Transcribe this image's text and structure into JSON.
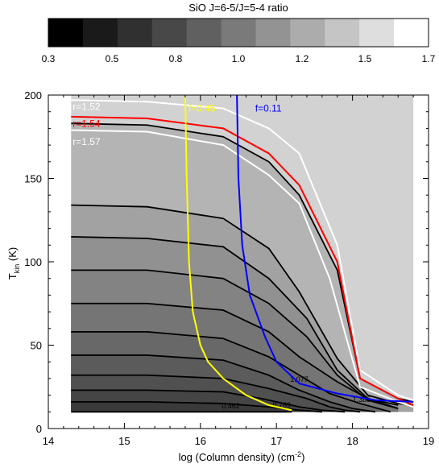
{
  "colorbar": {
    "title": "SiO J=6-5/J=5-4 ratio",
    "ticks": [
      "0.3",
      "0.5",
      "0.8",
      "1.0",
      "1.2",
      "1.5",
      "1.7"
    ],
    "shades": [
      "#000000",
      "#1a1a1a",
      "#303030",
      "#484848",
      "#606060",
      "#7a7a7a",
      "#939393",
      "#acacac",
      "#c5c5c5",
      "#dedede",
      "#ffffff"
    ]
  },
  "chart_data": {
    "type": "contour",
    "xlabel": "log (Column density) (cm",
    "xlabel_sup": "-2",
    "xlabel_end": ")",
    "ylabel_main": "T",
    "ylabel_sub": "kin",
    "ylabel_unit": " (K)",
    "xlim": [
      14,
      19
    ],
    "ylim": [
      0,
      200
    ],
    "x_ticks": [
      "14",
      "15",
      "16",
      "17",
      "18",
      "19"
    ],
    "y_ticks": [
      "0",
      "50",
      "100",
      "150",
      "200"
    ],
    "x_tick_values": [
      14,
      15,
      16,
      17,
      18,
      19
    ],
    "y_tick_values": [
      0,
      50,
      100,
      150,
      200
    ],
    "grid_x": [
      14.3,
      15.3,
      16.3,
      17.3,
      17.6,
      18.2,
      18.8
    ],
    "grid_y": [
      10,
      13,
      17,
      24,
      30,
      40,
      52,
      64,
      80,
      100,
      125,
      150,
      185,
      198
    ],
    "background_color": "#d2d2d2",
    "level_fills": [
      "#303030",
      "#3a3a3a",
      "#454545",
      "#505050",
      "#5b5b5b",
      "#686868",
      "#757575",
      "#838383",
      "#919191",
      "#a2a2a2",
      "#b4b4b4",
      "#c3c3c3"
    ],
    "black_contours": [
      {
        "x": [
          14.3,
          15.3,
          16.3,
          16.8,
          17.2
        ],
        "y": [
          10,
          10,
          10,
          10,
          10
        ],
        "label": "0.462",
        "label_x": 16.28,
        "label_y": 12
      },
      {
        "x": [
          14.3,
          15.3,
          16.3,
          16.9,
          17.3,
          17.6
        ],
        "y": [
          16,
          16,
          15,
          13,
          11,
          10
        ]
      },
      {
        "x": [
          14.3,
          15.3,
          16.3,
          16.8,
          17.3,
          17.6,
          17.9
        ],
        "y": [
          23,
          23,
          22,
          18,
          13,
          11,
          10
        ],
        "label": "0.769",
        "label_x": 16.95,
        "label_y": 12.5
      },
      {
        "x": [
          14.3,
          15.3,
          16.3,
          16.9,
          17.4,
          17.7,
          17.9,
          18.1
        ],
        "y": [
          32,
          32,
          30,
          24,
          18,
          13,
          11,
          10
        ]
      },
      {
        "x": [
          14.3,
          15.3,
          16.3,
          16.9,
          17.3,
          17.7,
          18.0,
          18.3
        ],
        "y": [
          44,
          44,
          41,
          32,
          23,
          16,
          12,
          10
        ]
      },
      {
        "x": [
          14.3,
          15.3,
          16.3,
          16.9,
          17.3,
          17.7,
          18.1,
          18.5
        ],
        "y": [
          58,
          58,
          54,
          43,
          32,
          21,
          15,
          10
        ],
        "label": "1.077",
        "label_x": 17.18,
        "label_y": 28
      },
      {
        "x": [
          14.3,
          15.3,
          16.3,
          16.9,
          17.3,
          17.8,
          18.2,
          18.6
        ],
        "y": [
          75,
          75,
          71,
          58,
          43,
          28,
          18,
          12
        ]
      },
      {
        "x": [
          14.3,
          15.3,
          16.3,
          16.9,
          17.4,
          17.8,
          18.2,
          18.6
        ],
        "y": [
          95,
          95,
          90,
          75,
          55,
          32,
          17,
          12
        ],
        "label": "1.385",
        "label_x": 18.0,
        "label_y": 16
      },
      {
        "x": [
          14.3,
          15.3,
          16.3,
          16.9,
          17.4,
          17.8,
          18.2,
          18.6
        ],
        "y": [
          115,
          114,
          109,
          90,
          66,
          35,
          18,
          14
        ]
      },
      {
        "x": [
          14.3,
          15.3,
          16.3,
          16.9,
          17.3,
          17.8,
          18.2,
          18.6,
          18.8
        ],
        "y": [
          134,
          133,
          126,
          108,
          82,
          42,
          20,
          15,
          14
        ]
      },
      {
        "x": [
          14.3,
          15.3,
          16.3,
          16.9,
          17.3,
          17.8,
          18.1,
          18.6,
          18.8
        ],
        "y": [
          183,
          182,
          175,
          160,
          140,
          95,
          30,
          18,
          16
        ]
      }
    ],
    "ratio_lines": [
      {
        "label": "r=1.52",
        "color": "#ffffff",
        "label_x": 14.32,
        "label_y": 191,
        "x": [
          14.3,
          15.3,
          16.3,
          16.9,
          17.3,
          17.8,
          18.1,
          18.6,
          18.8
        ],
        "y": [
          197,
          196,
          192,
          180,
          165,
          110,
          35,
          20,
          17
        ]
      },
      {
        "label": "r=1.54",
        "color": "#ff0000",
        "label_x": 14.32,
        "label_y": 181,
        "x": [
          14.3,
          15.3,
          16.3,
          16.9,
          17.3,
          17.8,
          18.1,
          18.6,
          18.8
        ],
        "y": [
          187,
          186,
          180,
          165,
          146,
          100,
          30,
          18,
          14
        ]
      },
      {
        "label": "r=1.57",
        "color": "#ffffff",
        "label_x": 14.32,
        "label_y": 170,
        "x": [
          14.3,
          15.3,
          16.3,
          16.9,
          17.3,
          17.7,
          18.1,
          18.6,
          18.8
        ],
        "y": [
          179,
          178,
          170,
          152,
          135,
          90,
          25,
          16,
          13
        ]
      }
    ],
    "fraction_lines": [
      {
        "label": "f=0.45",
        "color": "#ffff00",
        "label_x": 15.84,
        "label_y": 190,
        "x": [
          15.8,
          15.82,
          15.85,
          15.9,
          16.0,
          16.1,
          16.3,
          16.6,
          16.9,
          17.2
        ],
        "y": [
          200,
          150,
          100,
          70,
          50,
          40,
          30,
          20,
          14,
          11
        ]
      },
      {
        "label": "f=0.11",
        "color": "#0000ff",
        "label_x": 16.72,
        "label_y": 190,
        "x": [
          16.48,
          16.5,
          16.55,
          16.65,
          16.85,
          17.0,
          17.3,
          17.8,
          18.3,
          18.8
        ],
        "y": [
          200,
          150,
          110,
          80,
          55,
          40,
          27,
          21,
          17,
          16
        ]
      }
    ]
  }
}
